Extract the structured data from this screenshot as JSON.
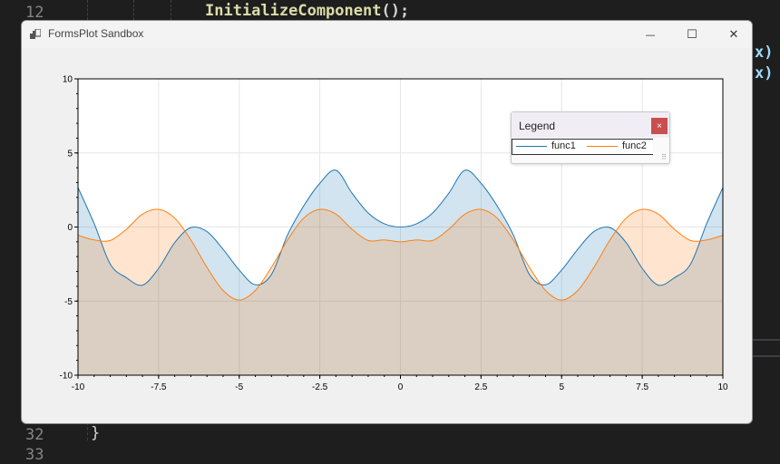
{
  "editor": {
    "line_top": "12",
    "line_bottom_a": "32",
    "line_bottom_b": "33",
    "code_call": "InitializeComponent",
    "code_punct": "();",
    "frag1": "x)",
    "frag2": "x)",
    "closing_brace": "}"
  },
  "window": {
    "title": "FormsPlot Sandbox",
    "minimize_glyph": "—",
    "maximize_glyph": "☐",
    "close_glyph": "✕"
  },
  "legend": {
    "title": "Legend",
    "close_glyph": "×",
    "items": [
      {
        "label": "func1",
        "color": "#1f77b4"
      },
      {
        "label": "func2",
        "color": "#ff7f0e"
      }
    ]
  },
  "chart_data": {
    "type": "area",
    "title": "",
    "xlabel": "",
    "ylabel": "",
    "xlim": [
      -10,
      10
    ],
    "ylim": [
      -10,
      10
    ],
    "xticks": [
      -10,
      -7.5,
      -5,
      -2.5,
      0,
      2.5,
      5,
      7.5,
      10
    ],
    "xtick_labels": [
      "-10",
      "-7.5",
      "-5",
      "-2.5",
      "0",
      "2.5",
      "5",
      "7.5",
      "10"
    ],
    "yticks": [
      -10,
      -5,
      0,
      5,
      10
    ],
    "ytick_labels": [
      "-10",
      "-5",
      "0",
      "5",
      "10"
    ],
    "grid": true,
    "fill_to": -10,
    "legend_position": "top-right",
    "series": [
      {
        "name": "func1",
        "color": "#1f77b4",
        "fill": "rgba(31,119,180,0.2)",
        "x": [
          -10,
          -9.5,
          -9,
          -8.5,
          -8,
          -7.5,
          -7,
          -6.5,
          -6,
          -5.5,
          -5,
          -4.5,
          -4,
          -3.5,
          -3,
          -2.5,
          -2,
          -1.5,
          -1,
          -0.5,
          0,
          0.5,
          1,
          1.5,
          2,
          2.5,
          3,
          3.5,
          4,
          4.5,
          5,
          5.5,
          6,
          6.5,
          7,
          7.5,
          8,
          8.5,
          9,
          9.5,
          10
        ],
        "y": [
          2.66,
          0.24,
          -2.5,
          -3.42,
          -3.92,
          -2.79,
          -1.05,
          -0.04,
          -0.31,
          -1.5,
          -2.9,
          -3.9,
          -3.2,
          -0.53,
          1.42,
          2.95,
          3.83,
          2.28,
          0.95,
          0.22,
          0,
          0.22,
          0.95,
          2.28,
          3.83,
          2.95,
          1.42,
          -0.53,
          -3.2,
          -3.9,
          -2.9,
          -1.5,
          -0.31,
          -0.04,
          -1.05,
          -2.79,
          -3.92,
          -3.42,
          -2.5,
          0.24,
          2.66
        ]
      },
      {
        "name": "func2",
        "color": "#ff7f0e",
        "fill": "rgba(255,127,14,0.2)",
        "x": [
          -10,
          -9.5,
          -9,
          -8.5,
          -8,
          -7.5,
          -7,
          -6.5,
          -6,
          -5.5,
          -5,
          -4.5,
          -4,
          -3.5,
          -3,
          -2.5,
          -2,
          -1.5,
          -1,
          -0.5,
          0,
          0.5,
          1,
          1.5,
          2,
          2.5,
          3,
          3.5,
          4,
          4.5,
          5,
          5.5,
          6,
          6.5,
          7,
          7.5,
          8,
          8.5,
          9,
          9.5,
          10
        ],
        "y": [
          -0.56,
          -0.87,
          -0.91,
          -0.15,
          0.87,
          1.19,
          0.6,
          -0.87,
          -2.72,
          -4.28,
          -4.93,
          -4.28,
          -2.72,
          -0.87,
          0.6,
          1.19,
          0.87,
          -0.15,
          -0.91,
          -0.87,
          -1.0,
          -0.87,
          -0.91,
          -0.15,
          0.87,
          1.19,
          0.6,
          -0.87,
          -2.72,
          -4.28,
          -4.93,
          -4.28,
          -2.72,
          -0.87,
          0.6,
          1.19,
          0.87,
          -0.15,
          -0.91,
          -0.87,
          -0.56
        ]
      }
    ]
  }
}
